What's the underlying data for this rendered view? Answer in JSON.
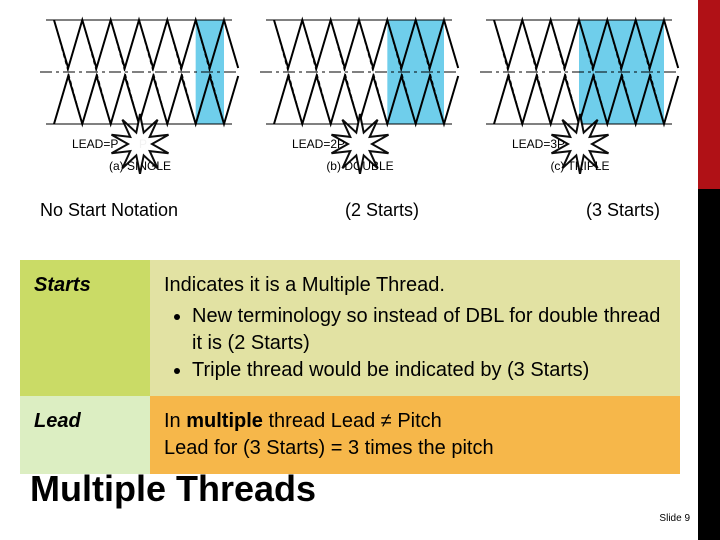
{
  "accent": {
    "upper_color": "#b01116",
    "lower_color": "#000000",
    "upper_height_pct": 35
  },
  "diagrams": {
    "stroke": "#000000",
    "fill_highlight": "#56c6e8",
    "centerline": "#000000",
    "burst_stroke": "#000000",
    "burst_fill": "#ffffff",
    "items": [
      {
        "label": "(a)  SINGLE",
        "lead_text": "LEAD=P",
        "pitch_text": "P"
      },
      {
        "label": "(b)  DOUBLE",
        "lead_text": "LEAD=2P",
        "pitch_text": ""
      },
      {
        "label": "(c)  TRIPLE",
        "lead_text": "LEAD=3P",
        "pitch_text": ""
      }
    ]
  },
  "captions": {
    "single": "No Start Notation",
    "double": "(2 Starts)",
    "triple": "(3 Starts)"
  },
  "table": {
    "row1_bg": "#e2e2a3",
    "row1_term_bg": "#cadb66",
    "row2_bg": "#f6b74a",
    "row2_term_bg": "#dceec2",
    "starts_term": "Starts",
    "starts_line1": "Indicates it is a Multiple Thread.",
    "starts_b1": "New terminology so instead of DBL for double thread it is (2 Starts)",
    "starts_b2": "Triple thread would be indicated by (3 Starts)",
    "lead_term": "Lead",
    "lead_line1_a": "In ",
    "lead_line1_b": "multiple",
    "lead_line1_c": " thread Lead ",
    "lead_line1_neq": "≠",
    "lead_line1_d": " Pitch",
    "lead_line2": "Lead for (3 Starts) = 3 times the pitch"
  },
  "title": "Multiple Threads",
  "slide_number_label": "Slide ",
  "slide_number": "9"
}
